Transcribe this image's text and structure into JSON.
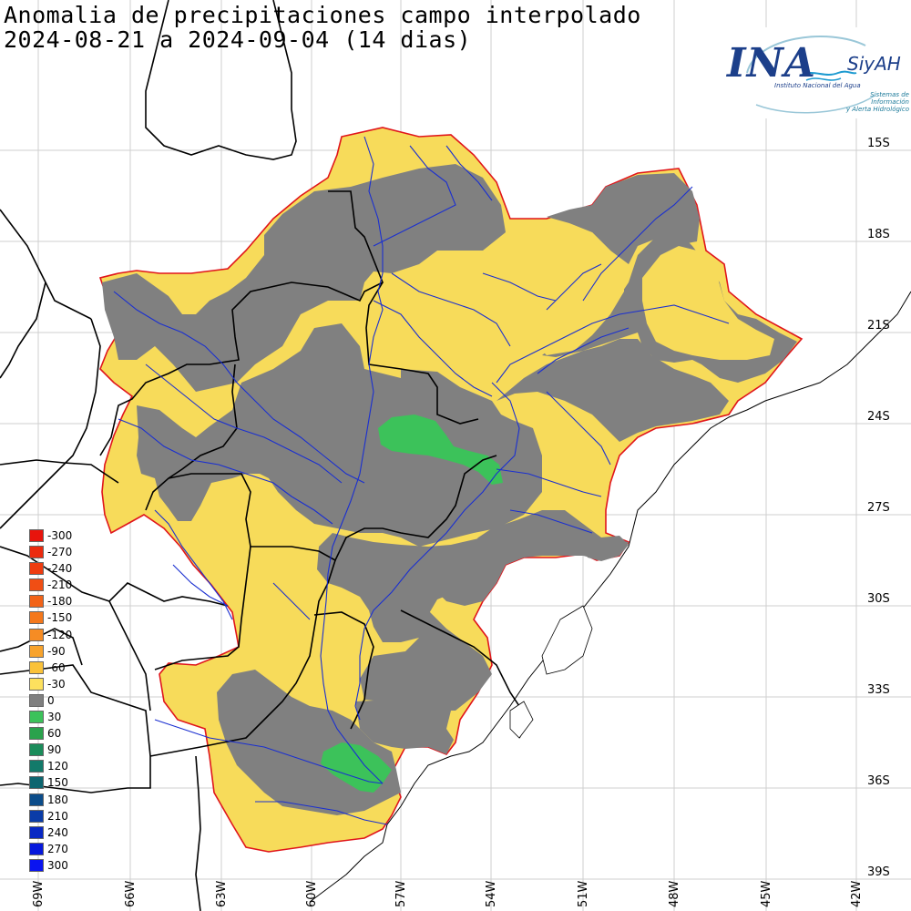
{
  "title": {
    "line1": "Anomalia de precipitaciones campo interpolado",
    "line2": "2024-08-21 a 2024-09-04 (14 dias)"
  },
  "logo": {
    "name": "INA",
    "product": "SiyAH",
    "subtitle": "Instituto Nacional del Agua",
    "subtitle2a": "Sistemas de Información",
    "subtitle2b": "y Alerta Hidrológico"
  },
  "latitudes": [
    "15S",
    "18S",
    "21S",
    "24S",
    "27S",
    "30S",
    "33S",
    "36S",
    "39S"
  ],
  "longitudes": [
    "69W",
    "66W",
    "63W",
    "60W",
    "57W",
    "54W",
    "51W",
    "48W",
    "45W",
    "42W"
  ],
  "legend": [
    {
      "label": "-300",
      "color": "#e8140c"
    },
    {
      "label": "-270",
      "color": "#ec2a0e"
    },
    {
      "label": "-240",
      "color": "#ee3c10"
    },
    {
      "label": "-210",
      "color": "#f04e14"
    },
    {
      "label": "-180",
      "color": "#f26318"
    },
    {
      "label": "-150",
      "color": "#f4781c"
    },
    {
      "label": "-120",
      "color": "#f68c24"
    },
    {
      "label": "-90",
      "color": "#f8a32c"
    },
    {
      "label": "-60",
      "color": "#fac23a"
    },
    {
      "label": "-30",
      "color": "#fde15e"
    },
    {
      "label": "0",
      "color": "#7f7f7f"
    },
    {
      "label": "30",
      "color": "#3cc25a"
    },
    {
      "label": "60",
      "color": "#2aa24c"
    },
    {
      "label": "90",
      "color": "#1a8c5a"
    },
    {
      "label": "120",
      "color": "#127a6a"
    },
    {
      "label": "150",
      "color": "#0d6670"
    },
    {
      "label": "180",
      "color": "#0b4c8a"
    },
    {
      "label": "210",
      "color": "#0a3ca8"
    },
    {
      "label": "240",
      "color": "#0828c4"
    },
    {
      "label": "270",
      "color": "#0618dc"
    },
    {
      "label": "300",
      "color": "#0a14f0"
    }
  ],
  "colors": {
    "dry": "#f7db5a",
    "neutral": "#808080",
    "wet": "#3cc25a",
    "basin_outline": "#e0151b",
    "rivers": "#1a2fd0",
    "borders": "#000000"
  }
}
